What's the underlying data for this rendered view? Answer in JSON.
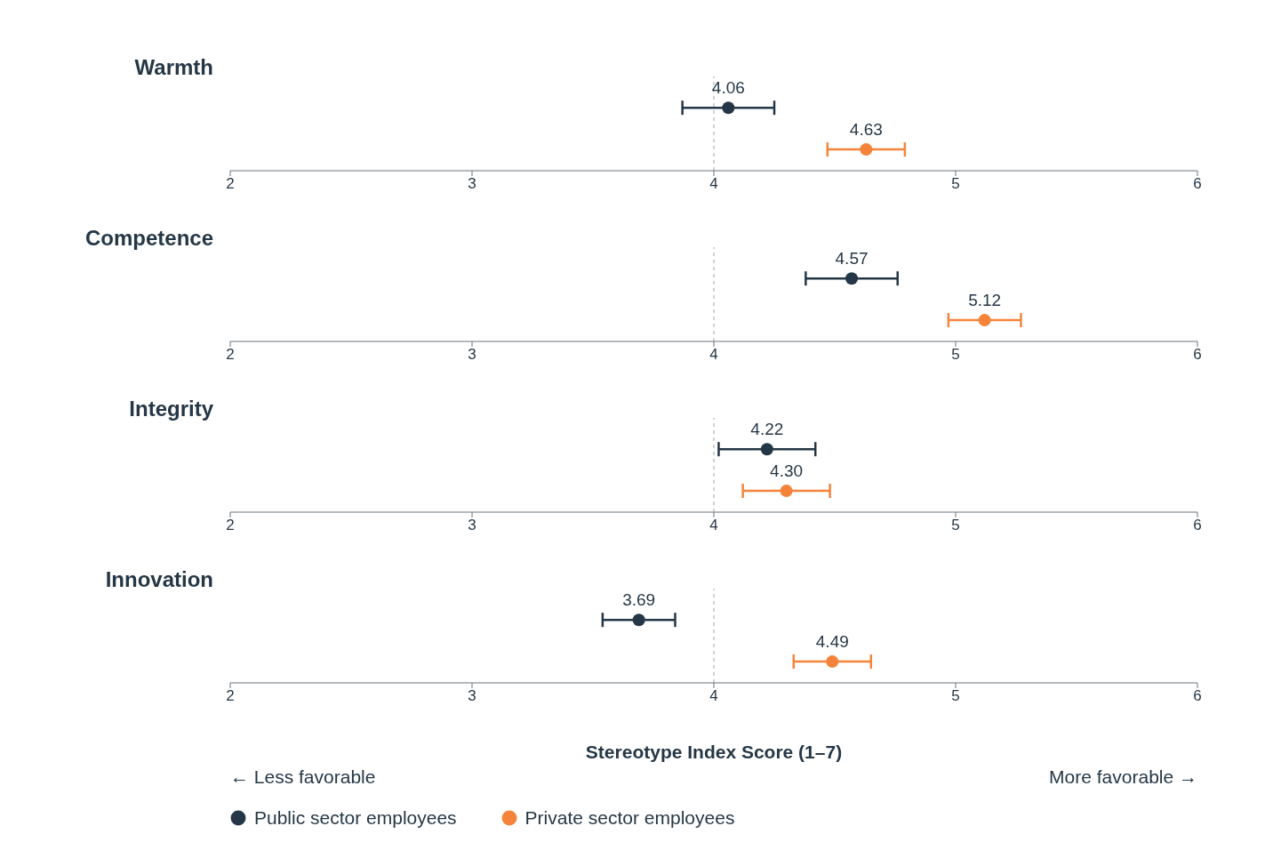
{
  "chart_data": [
    {
      "type": "scatter",
      "title": "Warmth",
      "orientation": "horizontal",
      "categories": [
        null
      ],
      "xlim": [
        2,
        6
      ],
      "xticks": [
        2,
        3,
        4,
        5,
        6
      ],
      "tick_labels": "x",
      "marker": "circle",
      "ref_lines": [
        {
          "axis": "x",
          "value": 4,
          "color": "#a0a4a8",
          "line_style": "dashed"
        }
      ],
      "series": [
        {
          "color": "#253746",
          "values": [
            4.06
          ],
          "errors": [
            0.19
          ],
          "value_labels": [
            "4.06"
          ]
        },
        {
          "color": "#f5843a",
          "values": [
            4.63
          ],
          "errors": [
            0.16
          ],
          "value_labels": [
            "4.63"
          ]
        }
      ]
    },
    {
      "type": "scatter",
      "title": "Competence",
      "orientation": "horizontal",
      "categories": [
        null
      ],
      "xlim": [
        2,
        6
      ],
      "xticks": [
        2,
        3,
        4,
        5,
        6
      ],
      "tick_labels": "x",
      "marker": "circle",
      "ref_lines": [
        {
          "axis": "x",
          "value": 4,
          "color": "#a0a4a8",
          "line_style": "dashed"
        }
      ],
      "series": [
        {
          "color": "#253746",
          "values": [
            4.57
          ],
          "errors": [
            0.19
          ],
          "value_labels": [
            "4.57"
          ]
        },
        {
          "color": "#f5843a",
          "values": [
            5.12
          ],
          "errors": [
            0.15
          ],
          "value_labels": [
            "5.12"
          ]
        }
      ]
    },
    {
      "type": "scatter",
      "title": "Integrity",
      "orientation": "horizontal",
      "categories": [
        null
      ],
      "xlim": [
        2,
        6
      ],
      "xticks": [
        2,
        3,
        4,
        5,
        6
      ],
      "tick_labels": "x",
      "marker": "circle",
      "ref_lines": [
        {
          "axis": "x",
          "value": 4,
          "color": "#a0a4a8",
          "line_style": "dashed"
        }
      ],
      "series": [
        {
          "color": "#253746",
          "values": [
            4.22
          ],
          "errors": [
            0.2
          ],
          "value_labels": [
            "4.22"
          ]
        },
        {
          "color": "#f5843a",
          "values": [
            4.3
          ],
          "errors": [
            0.18
          ],
          "value_labels": [
            "4.30"
          ]
        }
      ]
    },
    {
      "type": "scatter",
      "title": "Innovation",
      "orientation": "horizontal",
      "categories": [
        null
      ],
      "xlim": [
        2,
        6
      ],
      "xticks": [
        2,
        3,
        4,
        5,
        6
      ],
      "tick_labels": "x",
      "marker": "circle",
      "xlabel": "Stereotype Index Score (1–7)",
      "legend": "bottom",
      "annotations": [
        "← Less favorable",
        "More favorable →"
      ],
      "ref_lines": [
        {
          "axis": "x",
          "value": 4,
          "color": "#a0a4a8",
          "line_style": "dashed"
        }
      ],
      "series": [
        {
          "name": "Public sector employees",
          "color": "#253746",
          "values": [
            3.69
          ],
          "errors": [
            0.15
          ],
          "value_labels": [
            "3.69"
          ]
        },
        {
          "name": "Private sector employees",
          "color": "#f5843a",
          "values": [
            4.49
          ],
          "errors": [
            0.16
          ],
          "value_labels": [
            "4.49"
          ]
        }
      ]
    }
  ]
}
